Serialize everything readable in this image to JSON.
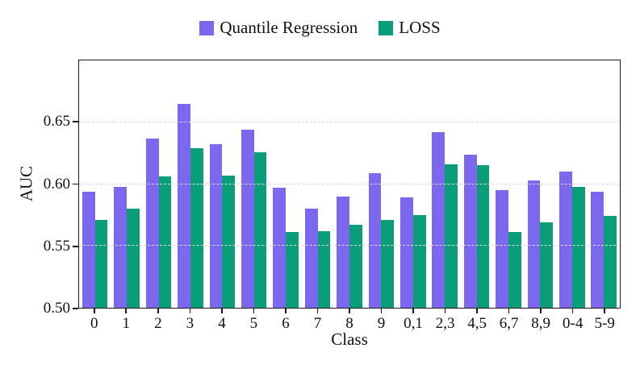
{
  "chart_data": {
    "type": "bar",
    "title": "",
    "xlabel": "Class",
    "ylabel": "AUC",
    "categories": [
      "0",
      "1",
      "2",
      "3",
      "4",
      "5",
      "6",
      "7",
      "8",
      "9",
      "0,1",
      "2,3",
      "4,5",
      "6,7",
      "8,9",
      "0-4",
      "5-9"
    ],
    "series": [
      {
        "name": "Quantile Regression",
        "color": "#7B68EE",
        "values": [
          0.594,
          0.598,
          0.637,
          0.665,
          0.632,
          0.644,
          0.597,
          0.58,
          0.59,
          0.609,
          0.589,
          0.642,
          0.624,
          0.595,
          0.603,
          0.61,
          0.594
        ]
      },
      {
        "name": "LOSS",
        "color": "#0A9E78",
        "values": [
          0.571,
          0.58,
          0.606,
          0.629,
          0.607,
          0.626,
          0.561,
          0.562,
          0.567,
          0.571,
          0.575,
          0.616,
          0.615,
          0.561,
          0.569,
          0.598,
          0.574
        ]
      }
    ],
    "ylim": [
      0.5,
      0.7
    ],
    "yticks": [
      0.5,
      0.55,
      0.6,
      0.65
    ],
    "ytick_labels": [
      "0.50",
      "0.55",
      "0.60",
      "0.65"
    ],
    "grid": "horizontal dashed at yticks (except axis line)",
    "legend_position": "top-center",
    "axis_box": true
  }
}
